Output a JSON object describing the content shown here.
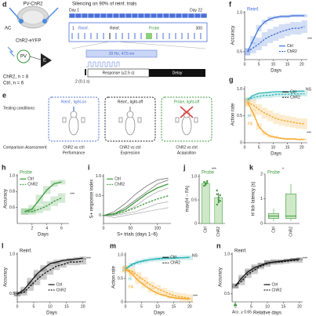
{
  "diagram": {
    "d": {
      "panel": "d",
      "virus": "PV-ChR2",
      "region": "AC",
      "construct": "ChR2-eYFP",
      "cell_pv": "PV",
      "cell_e": "E",
      "n_chr2": "ChR2, n = 8",
      "n_ctrl": "Ctrl, n = 6",
      "schedule_title": "Silencing on 90% of reinf. trials",
      "day_start": "Day 1",
      "day_end": "Day 22",
      "block_reinf_1": "Reinf.",
      "block_reinf_2": "Reinf.",
      "block_probe": "Probe",
      "trial_start": "1",
      "trial_end": "300",
      "light": "20 Hz, 473 nm",
      "response": "Response (≤2.5 s)",
      "delay": "Delay",
      "tone": "2 (0.1 s)"
    },
    "e": {
      "panel": "e",
      "testing": "Testing conditions:",
      "assessment": "Comparison Assessment:",
      "conditions": [
        "Reinf., light-on",
        "Reinf., light-off",
        "Probe, light-off"
      ],
      "comparisons": [
        "ChR2 vs ctrl",
        "ChR2 vs ctrl",
        "ChR2 vs ctrl"
      ],
      "outcomes": [
        "Performance",
        "Expression",
        "Acquisition"
      ]
    }
  },
  "chart_data": [
    {
      "type": "line",
      "panel": "f",
      "title": "Reinf.",
      "title_color": "#3a6fd8",
      "xlabel": "Days",
      "ylabel": "Accuracy",
      "x": [
        1,
        3,
        5,
        7,
        9,
        11,
        13,
        15,
        17,
        19,
        21
      ],
      "xlim": [
        0,
        22
      ],
      "xticks": [
        0,
        5,
        10,
        15,
        20
      ],
      "ylim": [
        0.4,
        1.02
      ],
      "yticks": [
        0.5,
        {
          "value": 1,
          "label": "1.0"
        }
      ],
      "series": [
        {
          "name": "Ctrl",
          "color": "#3a6fd8",
          "dash": false,
          "values": [
            0.5,
            0.65,
            0.8,
            0.88,
            0.92,
            0.94,
            0.95,
            0.95,
            0.96,
            0.96,
            0.96
          ],
          "err": [
            0.04,
            0.05,
            0.04,
            0.03,
            0.03,
            0.02,
            0.02,
            0.02,
            0.02,
            0.02,
            0.02
          ]
        },
        {
          "name": "ChR2",
          "color": "#3a6fd8",
          "dash": true,
          "values": [
            0.5,
            0.55,
            0.6,
            0.66,
            0.7,
            0.73,
            0.76,
            0.78,
            0.8,
            0.8,
            0.82
          ],
          "err": [
            0.05,
            0.07,
            0.08,
            0.09,
            0.09,
            0.09,
            0.09,
            0.08,
            0.08,
            0.08,
            0.08
          ]
        }
      ],
      "annotations": [
        {
          "text": "***",
          "color": "#222"
        }
      ]
    },
    {
      "type": "line",
      "panel": "g",
      "xlabel": "Days",
      "ylabel": "Action rate",
      "x": [
        1,
        3,
        5,
        7,
        9,
        11,
        13,
        15,
        17,
        19,
        21
      ],
      "xlim": [
        0,
        22
      ],
      "xticks": [
        0,
        5,
        10,
        15,
        20
      ],
      "ylim": [
        0,
        1.05
      ],
      "yticks": [
        0,
        0.5,
        {
          "value": 1,
          "label": "1.0"
        }
      ],
      "series": [
        {
          "color": "#2bb3b3",
          "dash": false,
          "values": [
            0.8,
            0.88,
            0.92,
            0.93,
            0.94,
            0.95,
            0.95,
            0.95,
            0.95,
            0.96,
            0.96
          ]
        },
        {
          "color": "#2bb3b3",
          "dash": true,
          "values": [
            0.8,
            0.84,
            0.86,
            0.88,
            0.88,
            0.9,
            0.9,
            0.9,
            0.91,
            0.91,
            0.91
          ],
          "err": [
            0.05,
            0.05,
            0.05,
            0.05,
            0.05,
            0.05,
            0.05,
            0.05,
            0.05,
            0.05,
            0.05
          ]
        },
        {
          "color": "#f5a623",
          "dash": false,
          "values": [
            0.75,
            0.55,
            0.3,
            0.18,
            0.12,
            0.1,
            0.08,
            0.07,
            0.07,
            0.06,
            0.06
          ],
          "err": [
            0.06,
            0.07,
            0.06,
            0.04,
            0.03,
            0.03,
            0.02,
            0.02,
            0.02,
            0.02,
            0.02
          ]
        },
        {
          "color": "#f5a623",
          "dash": true,
          "values": [
            0.75,
            0.7,
            0.62,
            0.55,
            0.5,
            0.45,
            0.42,
            0.4,
            0.38,
            0.36,
            0.35
          ],
          "err": [
            0.08,
            0.1,
            0.1,
            0.1,
            0.1,
            0.1,
            0.1,
            0.1,
            0.1,
            0.1,
            0.1
          ]
        }
      ],
      "legend": [
        {
          "name": "Ctrl",
          "color": "#222",
          "dash": false
        },
        {
          "name": "ChR2",
          "color": "#222",
          "dash": true
        }
      ],
      "annotations": [
        {
          "text": "H",
          "color": "#2bb3b3"
        },
        {
          "text": "FA",
          "color": "#f5a623"
        },
        {
          "text": "NS",
          "color": "#222"
        },
        {
          "text": "***",
          "color": "#222"
        }
      ]
    },
    {
      "type": "line",
      "panel": "h",
      "title": "Probe",
      "title_color": "#3a9a3a",
      "xlabel": "Days",
      "ylabel": "Accuracy",
      "x": [
        1,
        2,
        3,
        4,
        5,
        6
      ],
      "xlim": [
        0,
        7
      ],
      "xticks": [
        2,
        4,
        6
      ],
      "ylim": [
        0.4,
        1.02
      ],
      "yticks": [
        0.6,
        0.8,
        {
          "value": 1,
          "label": "1.0"
        }
      ],
      "series": [
        {
          "name": "Ctrl",
          "color": "#3a9a3a",
          "dash": false,
          "values": [
            0.55,
            0.58,
            0.7,
            0.82,
            0.9,
            0.92
          ],
          "err": [
            0.04,
            0.05,
            0.06,
            0.05,
            0.04,
            0.03
          ]
        },
        {
          "name": "ChR2",
          "color": "#3a9a3a",
          "dash": true,
          "values": [
            0.55,
            0.55,
            0.58,
            0.62,
            0.68,
            0.72
          ],
          "err": [
            0.04,
            0.04,
            0.05,
            0.06,
            0.06,
            0.06
          ]
        }
      ],
      "annotations": [
        {
          "text": "***",
          "color": "#222"
        }
      ]
    },
    {
      "type": "line",
      "panel": "i",
      "xlabel": "S+ trials (days 1–6)",
      "ylabel": "S+ response index",
      "x": [
        0,
        20,
        40,
        60,
        80,
        100,
        120
      ],
      "xlim": [
        0,
        125
      ],
      "xticks": [
        0,
        50,
        100
      ],
      "ylim": [
        -0.2,
        1.05
      ],
      "yticks": [
        0,
        0.5,
        {
          "value": 1,
          "label": "1.0"
        }
      ],
      "series": [
        {
          "color": "#999",
          "thin": true,
          "values": [
            0,
            0.0,
            0.05,
            0.1,
            0.2,
            0.3,
            0.35
          ]
        },
        {
          "color": "#999",
          "thin": true,
          "values": [
            0,
            -0.05,
            0.0,
            0.05,
            0.1,
            0.15,
            0.2
          ]
        },
        {
          "color": "#444",
          "thin": true,
          "values": [
            0,
            0.1,
            0.3,
            0.55,
            0.75,
            0.9,
            0.95
          ]
        },
        {
          "color": "#444",
          "thin": true,
          "values": [
            0,
            0.05,
            0.2,
            0.4,
            0.6,
            0.8,
            0.9
          ]
        },
        {
          "color": "#999",
          "thin": true,
          "values": [
            0,
            0.02,
            0.1,
            0.25,
            0.45,
            0.6,
            0.7
          ]
        },
        {
          "name": "Ctrl",
          "color": "#3a9a3a",
          "dash": false,
          "values": [
            0,
            0.05,
            0.15,
            0.35,
            0.55,
            0.7,
            0.8
          ]
        },
        {
          "name": "ChR2",
          "color": "#3a9a3a",
          "dash": true,
          "values": [
            0,
            0.03,
            0.1,
            0.2,
            0.32,
            0.42,
            0.5
          ]
        }
      ]
    },
    {
      "type": "bar",
      "panel": "j",
      "title": "Probe",
      "title_color": "#3a9a3a",
      "ylabel": "max(H − FA)",
      "categories": [
        "Ctrl",
        "ChR2"
      ],
      "values": [
        0.85,
        0.55
      ],
      "err": [
        0.04,
        0.1
      ],
      "color": "#cfe8c8",
      "points": [
        [
          0.8,
          0.85,
          0.9,
          0.88,
          0.82,
          0.86
        ],
        [
          0.4,
          0.5,
          0.6,
          0.7,
          0.55,
          0.48,
          0.62,
          0.45
        ]
      ],
      "ylim": [
        0,
        1.05
      ],
      "yticks": [
        0,
        0.5,
        {
          "value": 1,
          "label": "1.0"
        }
      ],
      "annotations": [
        {
          "text": "***",
          "color": "#222"
        }
      ]
    },
    {
      "type": "box",
      "panel": "k",
      "title": "Probe",
      "title_color": "#3a9a3a",
      "ylabel": "H lick latency (s)",
      "categories": [
        "Ctrl",
        "ChR2"
      ],
      "min": [
        0.1,
        0.1
      ],
      "q1": [
        0.2,
        0.2
      ],
      "median": [
        0.3,
        0.3
      ],
      "q3": [
        0.4,
        1.2
      ],
      "max": [
        0.6,
        1.6
      ],
      "color": "#3a9a3a",
      "ylim": [
        0,
        2
      ],
      "yticks": [
        0,
        1,
        2
      ],
      "annotations": [
        {
          "text": "*",
          "color": "#222"
        }
      ]
    },
    {
      "type": "line",
      "panel": "l",
      "title": "Reinf.",
      "title_color": "#222",
      "xlabel": "Days",
      "ylabel": "Accuracy",
      "x": [
        0,
        2,
        4,
        6,
        8,
        10,
        12,
        14,
        16,
        18,
        20
      ],
      "xlim": [
        0,
        21
      ],
      "xticks": [
        0,
        5,
        10,
        15,
        20
      ],
      "ylim": [
        0.4,
        1.02
      ],
      "yticks": [
        0.5,
        {
          "value": 1,
          "label": "1.0"
        }
      ],
      "series": [
        {
          "name": "Ctrl",
          "color": "#111",
          "dash": false,
          "values": [
            0.5,
            0.55,
            0.65,
            0.75,
            0.82,
            0.88,
            0.9,
            0.92,
            0.93,
            0.94,
            0.95
          ],
          "err": [
            0.03,
            0.04,
            0.05,
            0.05,
            0.04,
            0.03,
            0.03,
            0.02,
            0.02,
            0.02,
            0.02
          ]
        },
        {
          "name": "ChR2",
          "color": "#111",
          "dash": true,
          "values": [
            0.5,
            0.52,
            0.6,
            0.68,
            0.75,
            0.8,
            0.85,
            0.87,
            0.9,
            0.9,
            0.91
          ],
          "err": [
            0.03,
            0.04,
            0.06,
            0.07,
            0.07,
            0.06,
            0.05,
            0.04,
            0.04,
            0.04,
            0.04
          ]
        }
      ],
      "annotations": [
        {
          "text": "***",
          "color": "#222"
        }
      ]
    },
    {
      "type": "line",
      "panel": "m",
      "xlabel": "Days",
      "ylabel": "Action rate",
      "x": [
        0,
        2,
        4,
        6,
        8,
        10,
        12,
        14,
        16,
        18,
        20
      ],
      "xlim": [
        0,
        21
      ],
      "xticks": [
        0,
        5,
        10,
        15,
        20
      ],
      "ylim": [
        0,
        1.05
      ],
      "yticks": [
        0,
        0.5,
        {
          "value": 1,
          "label": "1.0"
        }
      ],
      "series": [
        {
          "color": "#2bb3b3",
          "dash": false,
          "values": [
            0.7,
            0.8,
            0.85,
            0.88,
            0.9,
            0.92,
            0.93,
            0.93,
            0.94,
            0.94,
            0.95
          ]
        },
        {
          "color": "#2bb3b3",
          "dash": true,
          "values": [
            0.7,
            0.78,
            0.84,
            0.87,
            0.9,
            0.91,
            0.92,
            0.93,
            0.93,
            0.94,
            0.94
          ],
          "err": [
            0.05,
            0.05,
            0.05,
            0.05,
            0.05,
            0.05,
            0.05,
            0.05,
            0.05,
            0.05,
            0.05
          ]
        },
        {
          "color": "#f5a623",
          "dash": false,
          "values": [
            0.7,
            0.6,
            0.45,
            0.35,
            0.25,
            0.18,
            0.14,
            0.1,
            0.08,
            0.07,
            0.06
          ],
          "err": [
            0.06,
            0.07,
            0.07,
            0.06,
            0.05,
            0.04,
            0.03,
            0.03,
            0.02,
            0.02,
            0.02
          ]
        },
        {
          "color": "#f5a623",
          "dash": true,
          "values": [
            0.7,
            0.65,
            0.55,
            0.45,
            0.35,
            0.28,
            0.22,
            0.16,
            0.12,
            0.1,
            0.08
          ],
          "err": [
            0.08,
            0.08,
            0.08,
            0.08,
            0.08,
            0.08,
            0.08,
            0.08,
            0.08,
            0.08,
            0.08
          ]
        }
      ],
      "legend": [
        {
          "name": "Ctrl",
          "color": "#222",
          "dash": false
        },
        {
          "name": "ChR2",
          "color": "#222",
          "dash": true
        }
      ],
      "annotations": [
        {
          "text": "H",
          "color": "#2bb3b3"
        },
        {
          "text": "FA",
          "color": "#f5a623"
        },
        {
          "text": "NS",
          "color": "#222"
        },
        {
          "text": "***",
          "color": "#222"
        }
      ]
    },
    {
      "type": "line",
      "panel": "n",
      "title": "Reinf.",
      "title_color": "#222",
      "xlabel": "Relative days",
      "ylabel": "Accuracy",
      "x": [
        0,
        2,
        4,
        6,
        8,
        10,
        12,
        14,
        16,
        18,
        20
      ],
      "xlim": [
        -1,
        21
      ],
      "xticks": [
        0,
        5,
        10,
        15,
        20
      ],
      "ylim": [
        0.4,
        1.02
      ],
      "yticks": [
        0.5,
        {
          "value": 1,
          "label": "1.0"
        }
      ],
      "series": [
        {
          "name": "Ctrl",
          "color": "#111",
          "dash": false,
          "values": [
            0.6,
            0.7,
            0.78,
            0.83,
            0.86,
            0.89,
            0.9,
            0.91,
            0.92,
            0.93,
            0.94
          ],
          "err": [
            0.03,
            0.04,
            0.04,
            0.04,
            0.03,
            0.03,
            0.03,
            0.02,
            0.02,
            0.02,
            0.02
          ]
        },
        {
          "name": "ChR2",
          "color": "#111",
          "dash": true,
          "values": [
            0.6,
            0.66,
            0.75,
            0.8,
            0.85,
            0.88,
            0.9,
            0.9,
            0.91,
            0.92,
            0.92
          ],
          "err": [
            0.03,
            0.05,
            0.05,
            0.05,
            0.04,
            0.04,
            0.03,
            0.03,
            0.03,
            0.03,
            0.03
          ]
        }
      ],
      "annotations": [
        {
          "text": "Acc. ≥ 0.65",
          "color": "#222"
        },
        {
          "text": "***",
          "color": "#222"
        }
      ]
    }
  ]
}
